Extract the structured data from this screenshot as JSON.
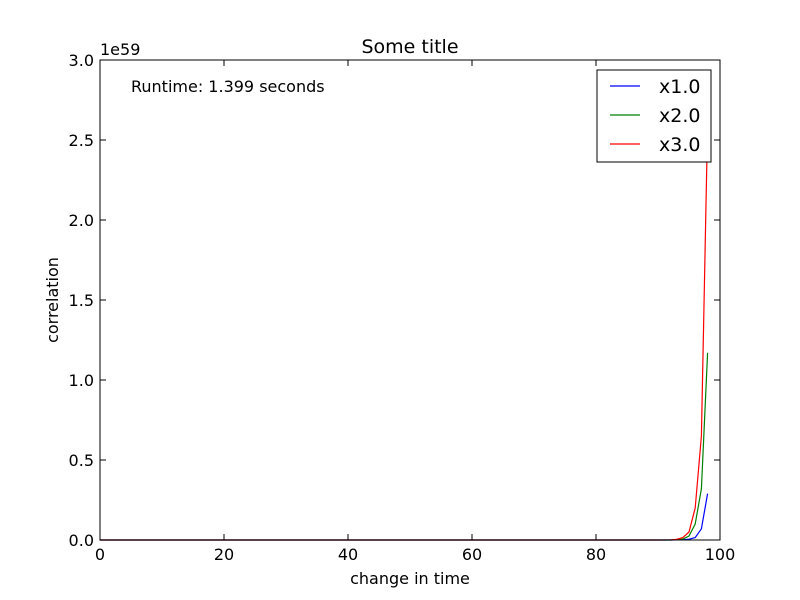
{
  "chart_data": {
    "type": "line",
    "title": "Some title",
    "xlabel": "change in time",
    "ylabel": "correlation",
    "xlim": [
      0,
      100
    ],
    "ylim": [
      0,
      3.0
    ],
    "y_scale_label": "1e59",
    "xticks": [
      0,
      20,
      40,
      60,
      80,
      100
    ],
    "xtick_labels": [
      "0",
      "20",
      "40",
      "60",
      "80",
      "100"
    ],
    "yticks": [
      0,
      0.5,
      1.0,
      1.5,
      2.0,
      2.5,
      3.0
    ],
    "ytick_labels": [
      "0.0",
      "0.5",
      "1.0",
      "1.5",
      "2.0",
      "2.5",
      "3.0"
    ],
    "grid": false,
    "legend": "top-right",
    "annotation": "Runtime: 1.399 seconds",
    "series": [
      {
        "name": "x1.0",
        "color": "#0000ff",
        "x": [
          0,
          90,
          92,
          93,
          94,
          95,
          96,
          97,
          98
        ],
        "y": [
          0,
          0,
          0,
          0.001,
          0.002,
          0.005,
          0.015,
          0.07,
          0.29
        ]
      },
      {
        "name": "x2.0",
        "color": "#008000",
        "x": [
          0,
          90,
          92,
          93,
          94,
          95,
          96,
          97,
          98
        ],
        "y": [
          0,
          0,
          0,
          0.002,
          0.006,
          0.025,
          0.1,
          0.32,
          1.17
        ]
      },
      {
        "name": "x3.0",
        "color": "#ff0000",
        "x": [
          0,
          90,
          92,
          93,
          94,
          95,
          96,
          97,
          98
        ],
        "y": [
          0,
          0,
          0.001,
          0.004,
          0.015,
          0.05,
          0.2,
          0.65,
          2.6
        ]
      }
    ]
  }
}
